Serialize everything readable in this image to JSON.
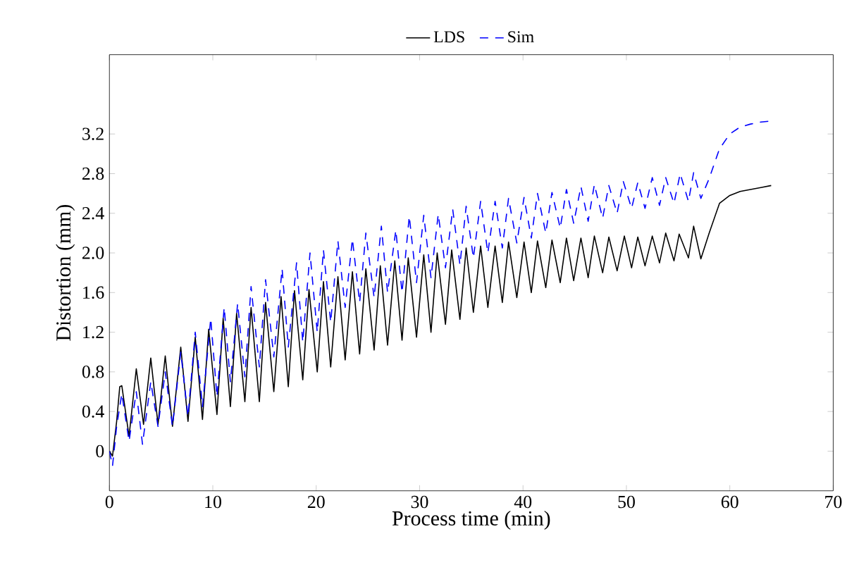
{
  "chart_data": {
    "type": "line",
    "xlabel": "Process time (min)",
    "ylabel": "Distortion (mm)",
    "xlim": [
      0,
      70
    ],
    "xticks": [
      0,
      10,
      20,
      30,
      40,
      50,
      60,
      70
    ],
    "ylim": [
      -0.4,
      4.0
    ],
    "yticks": [
      0,
      0.4,
      0.8,
      1.2,
      1.6,
      {
        "value": 2.0,
        "label": "2.0"
      },
      2.4,
      2.8,
      3.2
    ],
    "legend": "top",
    "grid": false,
    "series": [
      {
        "name": "LDS",
        "color": "#000000",
        "line_style": "solid",
        "x": [
          0,
          0.3,
          0.7,
          1.0,
          1.2,
          1.9,
          2.6,
          3.3,
          4.0,
          4.7,
          5.4,
          6.1,
          6.9,
          7.6,
          8.3,
          9.0,
          9.6,
          10.4,
          11.0,
          11.7,
          12.3,
          13.1,
          13.7,
          14.5,
          15.1,
          15.9,
          16.6,
          17.3,
          17.9,
          18.7,
          19.3,
          20.1,
          20.7,
          21.4,
          22.1,
          22.8,
          23.5,
          24.2,
          24.8,
          25.6,
          26.2,
          26.9,
          27.6,
          28.3,
          28.9,
          29.7,
          30.4,
          31.1,
          31.7,
          32.5,
          33.1,
          33.9,
          34.5,
          35.2,
          35.9,
          36.6,
          37.3,
          38.0,
          38.6,
          39.4,
          40.1,
          40.8,
          41.4,
          42.2,
          42.8,
          43.6,
          44.2,
          44.9,
          45.6,
          46.3,
          46.9,
          47.7,
          48.3,
          49.1,
          49.8,
          50.5,
          51.1,
          51.8,
          52.5,
          53.2,
          53.8,
          54.6,
          55.1,
          56.0,
          56.5,
          57.2,
          58,
          59,
          60,
          61,
          62,
          63,
          64
        ],
        "values": [
          0,
          -0.05,
          0.3,
          0.65,
          0.66,
          0.15,
          0.83,
          0.27,
          0.94,
          0.27,
          0.96,
          0.25,
          1.05,
          0.3,
          1.15,
          0.32,
          1.23,
          0.37,
          1.34,
          0.45,
          1.39,
          0.5,
          1.45,
          0.5,
          1.5,
          0.6,
          1.56,
          0.65,
          1.62,
          0.72,
          1.63,
          0.8,
          1.71,
          0.85,
          1.76,
          0.92,
          1.81,
          0.98,
          1.84,
          1.02,
          1.87,
          1.07,
          1.92,
          1.12,
          1.95,
          1.15,
          1.98,
          1.2,
          2.0,
          1.28,
          2.03,
          1.33,
          2.05,
          1.4,
          2.07,
          1.45,
          2.07,
          1.5,
          2.11,
          1.55,
          2.11,
          1.6,
          2.12,
          1.65,
          2.13,
          1.7,
          2.15,
          1.72,
          2.15,
          1.75,
          2.17,
          1.8,
          2.16,
          1.82,
          2.17,
          1.85,
          2.16,
          1.87,
          2.17,
          1.9,
          2.2,
          1.92,
          2.19,
          1.95,
          2.27,
          1.94,
          2.2,
          2.5,
          2.58,
          2.62,
          2.64,
          2.66,
          2.68
        ]
      },
      {
        "name": "Sim",
        "color": "#0000ff",
        "line_style": "dashed",
        "x": [
          0,
          0.3,
          0.7,
          1.2,
          1.9,
          2.6,
          3.2,
          4.0,
          4.7,
          5.4,
          6.1,
          6.9,
          7.6,
          8.3,
          9.0,
          9.8,
          10.4,
          11.1,
          11.7,
          12.4,
          13.1,
          13.7,
          14.5,
          15.1,
          15.9,
          16.7,
          17.3,
          18.1,
          18.7,
          19.4,
          20.1,
          20.7,
          21.4,
          22.1,
          22.8,
          23.5,
          24.2,
          24.8,
          25.6,
          26.3,
          26.9,
          27.7,
          28.3,
          29.0,
          29.7,
          30.4,
          31.1,
          31.8,
          32.5,
          33.2,
          33.9,
          34.5,
          35.2,
          35.9,
          36.6,
          37.3,
          38.0,
          38.6,
          39.4,
          40.1,
          40.8,
          41.4,
          42.2,
          42.8,
          43.6,
          44.2,
          44.9,
          45.6,
          46.3,
          46.9,
          47.7,
          48.3,
          49.1,
          49.7,
          50.5,
          51.1,
          51.8,
          52.5,
          53.2,
          53.8,
          54.6,
          55.2,
          56.0,
          56.5,
          57.2,
          58,
          59,
          60,
          61,
          62,
          63,
          64
        ],
        "values": [
          0,
          -0.15,
          0.25,
          0.58,
          0.1,
          0.6,
          0.07,
          0.7,
          0.25,
          0.8,
          0.25,
          1.0,
          0.35,
          1.2,
          0.45,
          1.34,
          0.55,
          1.45,
          0.7,
          1.49,
          0.75,
          1.66,
          0.85,
          1.73,
          0.95,
          1.84,
          1.05,
          1.9,
          1.1,
          2.0,
          1.2,
          2.03,
          1.3,
          2.12,
          1.45,
          2.14,
          1.5,
          2.2,
          1.55,
          2.27,
          1.6,
          2.23,
          1.6,
          2.37,
          1.7,
          2.38,
          1.75,
          2.39,
          1.85,
          2.44,
          1.88,
          2.47,
          1.95,
          2.52,
          2.0,
          2.52,
          2.05,
          2.55,
          2.1,
          2.56,
          2.15,
          2.6,
          2.2,
          2.61,
          2.25,
          2.64,
          2.3,
          2.67,
          2.32,
          2.69,
          2.35,
          2.68,
          2.4,
          2.72,
          2.45,
          2.71,
          2.45,
          2.76,
          2.48,
          2.76,
          2.5,
          2.8,
          2.52,
          2.81,
          2.55,
          2.75,
          3.05,
          3.2,
          3.27,
          3.3,
          3.32,
          3.33
        ]
      }
    ]
  }
}
